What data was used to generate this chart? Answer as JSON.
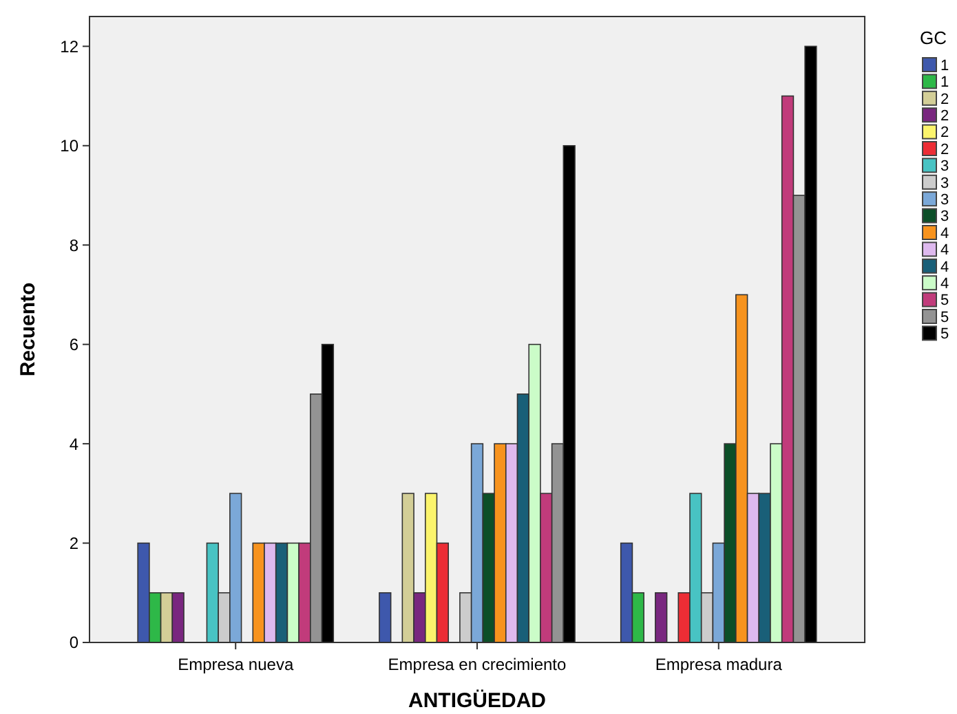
{
  "chart_data": {
    "type": "bar",
    "xlabel": "ANTIGÜEDAD",
    "ylabel": "Recuento",
    "legend_title": "GC",
    "legend": "right",
    "grid": false,
    "categories": [
      "Empresa nueva",
      "Empresa en crecimiento",
      "Empresa madura"
    ],
    "ylim": [
      0,
      12.6
    ],
    "yticks": [
      0,
      2,
      4,
      6,
      8,
      10,
      12
    ],
    "series": [
      {
        "name": "1",
        "color": "#3e58ac",
        "values": [
          2,
          1,
          2
        ]
      },
      {
        "name": "1",
        "color": "#2eb848",
        "values": [
          1,
          0,
          1
        ]
      },
      {
        "name": "2",
        "color": "#d3ce97",
        "values": [
          1,
          3,
          0
        ]
      },
      {
        "name": "2",
        "color": "#79277f",
        "values": [
          1,
          1,
          1
        ]
      },
      {
        "name": "2",
        "color": "#fbf46c",
        "values": [
          0,
          3,
          0
        ]
      },
      {
        "name": "2",
        "color": "#ec2d35",
        "values": [
          0,
          2,
          1
        ]
      },
      {
        "name": "3",
        "color": "#48c3c3",
        "values": [
          2,
          0,
          3
        ]
      },
      {
        "name": "3",
        "color": "#cccccc",
        "values": [
          1,
          1,
          1
        ]
      },
      {
        "name": "3",
        "color": "#7ba8d8",
        "values": [
          3,
          4,
          2
        ]
      },
      {
        "name": "3",
        "color": "#0c4f28",
        "values": [
          0,
          3,
          4
        ]
      },
      {
        "name": "4",
        "color": "#f7931e",
        "values": [
          2,
          4,
          7
        ]
      },
      {
        "name": "4",
        "color": "#deb9ee",
        "values": [
          2,
          4,
          3
        ]
      },
      {
        "name": "4",
        "color": "#195f78",
        "values": [
          2,
          5,
          3
        ]
      },
      {
        "name": "4",
        "color": "#cbfcc8",
        "values": [
          2,
          6,
          4
        ]
      },
      {
        "name": "5",
        "color": "#c13b7b",
        "values": [
          2,
          3,
          11
        ]
      },
      {
        "name": "5",
        "color": "#939393",
        "values": [
          5,
          4,
          9
        ]
      },
      {
        "name": "5",
        "color": "#000000",
        "values": [
          6,
          10,
          12
        ]
      }
    ]
  }
}
